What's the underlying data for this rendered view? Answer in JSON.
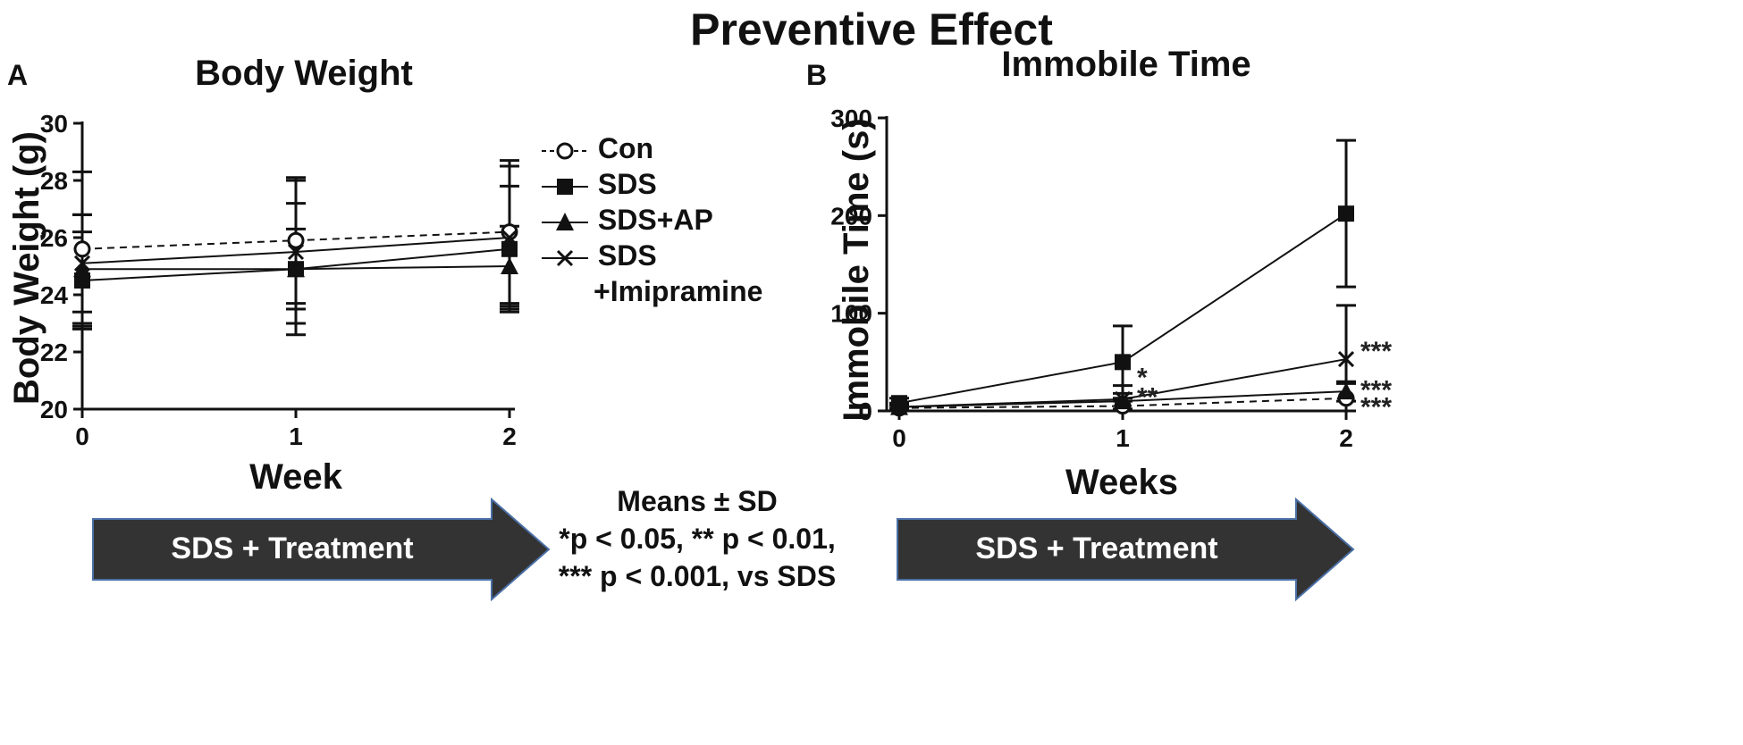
{
  "figure_title": "Preventive Effect",
  "panels": [
    {
      "letter": "A",
      "title": "Body Weight",
      "xlabel": "Week",
      "ylabel": "Body Weight (g)"
    },
    {
      "letter": "B",
      "title": "Immobile Time",
      "xlabel": "Weeks",
      "ylabel": "Immobile Time (s)"
    }
  ],
  "legend": {
    "items": [
      {
        "label": "Con",
        "marker": "open-circle",
        "line": "dashed"
      },
      {
        "label": "SDS",
        "marker": "filled-square",
        "line": "solid"
      },
      {
        "label": "SDS+AP",
        "marker": "filled-triangle",
        "line": "solid"
      },
      {
        "label": "SDS",
        "label2": "+Imipramine",
        "marker": "x",
        "line": "solid"
      }
    ]
  },
  "stats_note": {
    "line1": "Means ± SD",
    "line2": "*p < 0.05, ** p < 0.01,",
    "line3": "*** p < 0.001, vs SDS"
  },
  "arrows": [
    {
      "label": "SDS + Treatment"
    },
    {
      "label": "SDS + Treatment"
    }
  ],
  "colors": {
    "arrow_fill": "#333333",
    "arrow_stroke": "#4a6fa5",
    "ink": "#111111"
  },
  "chart_data": [
    {
      "type": "line",
      "title": "Body Weight",
      "xlabel": "Week",
      "ylabel": "Body Weight (g)",
      "x": [
        0,
        1,
        2
      ],
      "xticks": [
        "0",
        "1",
        "2"
      ],
      "ylim": [
        20,
        30
      ],
      "yticks": [
        "20",
        "22",
        "24",
        "26",
        "28",
        "30"
      ],
      "series": [
        {
          "name": "Con",
          "values": [
            25.6,
            25.9,
            26.2
          ],
          "sd": [
            2.7,
            2.2,
            2.5
          ]
        },
        {
          "name": "SDS",
          "values": [
            24.5,
            24.9,
            25.6
          ],
          "sd": [
            1.7,
            2.3,
            2.2
          ]
        },
        {
          "name": "SDS+AP",
          "values": [
            24.9,
            24.9,
            25.0
          ],
          "sd": [
            1.9,
            1.4,
            1.4
          ]
        },
        {
          "name": "SDS +Imipramine",
          "values": [
            25.1,
            25.5,
            26.0
          ],
          "sd": [
            1.7,
            2.5,
            2.5
          ]
        }
      ]
    },
    {
      "type": "line",
      "title": "Immobile Time",
      "xlabel": "Weeks",
      "ylabel": "Immobile Time (s)",
      "x": [
        0,
        1,
        2
      ],
      "xticks": [
        "0",
        "1",
        "2"
      ],
      "ylim": [
        0,
        300
      ],
      "yticks": [
        "0",
        "100",
        "200",
        "300"
      ],
      "series": [
        {
          "name": "Con",
          "values": [
            3,
            5,
            13
          ],
          "sd": [
            3,
            5,
            15
          ]
        },
        {
          "name": "SDS",
          "values": [
            8,
            50,
            202
          ],
          "sd": [
            5,
            37,
            75
          ]
        },
        {
          "name": "SDS+AP",
          "values": [
            4,
            10,
            20
          ],
          "sd": [
            3,
            8,
            10
          ]
        },
        {
          "name": "SDS +Imipramine",
          "values": [
            4,
            12,
            53
          ],
          "sd": [
            4,
            14,
            55
          ]
        }
      ],
      "annotations": [
        {
          "x": 1,
          "y": 38,
          "text": "*"
        },
        {
          "x": 1,
          "y": 18,
          "text": "**"
        },
        {
          "x": 2,
          "y": 65,
          "text": "***"
        },
        {
          "x": 2,
          "y": 25,
          "text": "***"
        },
        {
          "x": 2,
          "y": 8,
          "text": "***"
        }
      ]
    }
  ]
}
